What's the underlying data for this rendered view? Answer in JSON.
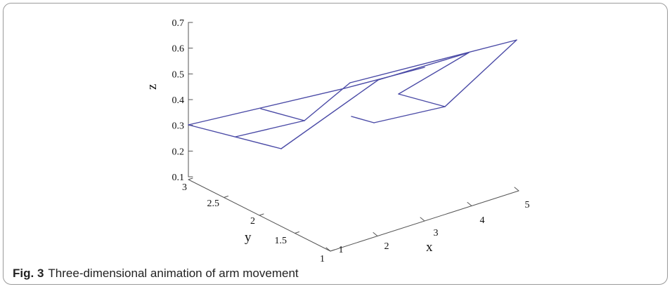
{
  "caption": {
    "label": "Fig. 3",
    "text": "Three-dimensional animation of arm movement"
  },
  "chart_data": {
    "type": "line",
    "title": "",
    "projection": "3d",
    "xlabel": "x",
    "ylabel": "y",
    "zlabel": "z",
    "xlim": [
      1,
      5
    ],
    "ylim": [
      1,
      3
    ],
    "zlim": [
      0.1,
      0.7
    ],
    "x_ticks": [
      "1",
      "2",
      "3",
      "4",
      "5"
    ],
    "y_ticks": [
      "1",
      "1.5",
      "2",
      "2.5",
      "3"
    ],
    "z_ticks": [
      "0.1",
      "0.2",
      "0.3",
      "0.4",
      "0.5",
      "0.6",
      "0.7"
    ],
    "line_color": "#4a4aa6",
    "grid": false,
    "legend": "none"
  }
}
